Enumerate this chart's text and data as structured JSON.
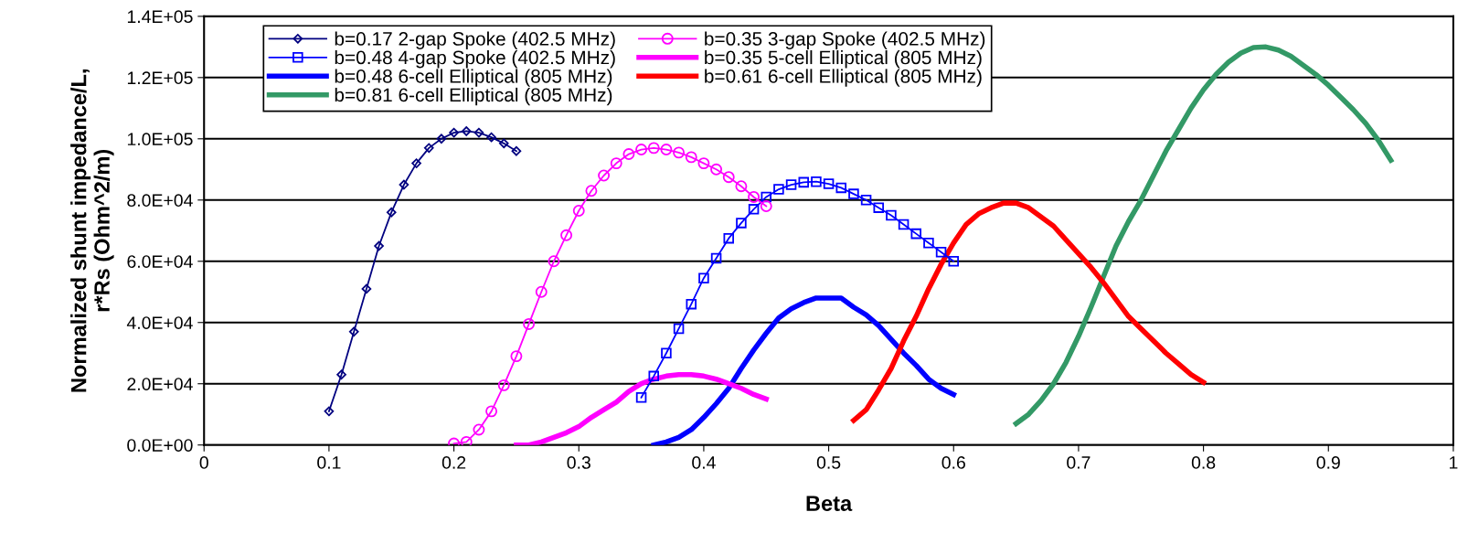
{
  "chart_data": {
    "type": "line",
    "xlabel": "Beta",
    "ylabel": "Normalized shunt impedance/L,\nr*Rs (Ohm^2/m)",
    "xlim": [
      0,
      1
    ],
    "xticks": [
      0,
      0.1,
      0.2,
      0.3,
      0.4,
      0.5,
      0.6,
      0.7,
      0.8,
      0.9,
      1
    ],
    "ylim": [
      0,
      140000
    ],
    "yticks": [
      {
        "value": 0,
        "label": "0.0E+00"
      },
      {
        "value": 20000,
        "label": "2.0E+04"
      },
      {
        "value": 40000,
        "label": "4.0E+04"
      },
      {
        "value": 60000,
        "label": "6.0E+04"
      },
      {
        "value": 80000,
        "label": "8.0E+04"
      },
      {
        "value": 100000,
        "label": "1.0E+05"
      },
      {
        "value": 120000,
        "label": "1.2E+05"
      },
      {
        "value": 140000,
        "label": "1.4E+05"
      }
    ],
    "grid": "y",
    "legend": "top left",
    "series": [
      {
        "name": "b=0.17 2-gap Spoke (402.5 MHz)",
        "color": "#000080",
        "marker": "diamond",
        "x": [
          0.1,
          0.11,
          0.12,
          0.13,
          0.14,
          0.15,
          0.16,
          0.17,
          0.18,
          0.19,
          0.2,
          0.21,
          0.22,
          0.23,
          0.24,
          0.25
        ],
        "values": [
          11000,
          23000,
          37000,
          51000,
          65000,
          76000,
          85000,
          92000,
          97000,
          100000,
          102000,
          102500,
          102000,
          100500,
          98500,
          96000
        ]
      },
      {
        "name": "b=0.48 4-gap Spoke (402.5 MHz)",
        "color": "#0000ff",
        "marker": "square",
        "x": [
          0.35,
          0.36,
          0.37,
          0.38,
          0.39,
          0.4,
          0.41,
          0.42,
          0.43,
          0.44,
          0.45,
          0.46,
          0.47,
          0.48,
          0.49,
          0.5,
          0.51,
          0.52,
          0.53,
          0.54,
          0.55,
          0.56,
          0.57,
          0.58,
          0.59,
          0.6
        ],
        "values": [
          15500,
          22500,
          30000,
          38000,
          46000,
          54500,
          61000,
          67500,
          72500,
          77000,
          81000,
          83500,
          85000,
          85800,
          86000,
          85300,
          84000,
          82000,
          80000,
          77500,
          75000,
          72000,
          69000,
          66000,
          63000,
          60000
        ]
      },
      {
        "name": "b=0.48 6-cell Elliptical (805 MHz)",
        "color": "#0000ff",
        "marker": "none",
        "x": [
          0.36,
          0.37,
          0.38,
          0.39,
          0.4,
          0.41,
          0.42,
          0.43,
          0.44,
          0.45,
          0.46,
          0.47,
          0.48,
          0.49,
          0.5,
          0.51,
          0.52,
          0.53,
          0.54,
          0.55,
          0.56,
          0.57,
          0.58,
          0.59,
          0.6
        ],
        "values": [
          0,
          1000,
          2500,
          5000,
          9000,
          13500,
          18500,
          25000,
          31000,
          36500,
          41500,
          44500,
          46500,
          48000,
          48000,
          48000,
          45000,
          42500,
          39000,
          34500,
          30000,
          26000,
          21500,
          18500,
          16500
        ]
      },
      {
        "name": "b=0.81 6-cell Elliptical (805 MHz)",
        "color": "#339966",
        "marker": "none",
        "x": [
          0.65,
          0.66,
          0.67,
          0.68,
          0.69,
          0.7,
          0.71,
          0.72,
          0.73,
          0.74,
          0.75,
          0.76,
          0.77,
          0.78,
          0.79,
          0.8,
          0.81,
          0.82,
          0.83,
          0.84,
          0.85,
          0.86,
          0.87,
          0.88,
          0.89,
          0.9,
          0.91,
          0.92,
          0.93,
          0.94,
          0.95
        ],
        "values": [
          7000,
          10000,
          14500,
          20000,
          27000,
          35500,
          45000,
          55000,
          65000,
          73000,
          80000,
          88000,
          96000,
          103000,
          110000,
          116000,
          121000,
          125000,
          128000,
          129800,
          130000,
          129000,
          127000,
          124000,
          121000,
          117500,
          113500,
          109500,
          105000,
          99500,
          93000
        ]
      },
      {
        "name": "b=0.35 3-gap Spoke (402.5 MHz)",
        "color": "#ff00ff",
        "marker": "circle",
        "x": [
          0.2,
          0.21,
          0.22,
          0.23,
          0.24,
          0.25,
          0.26,
          0.27,
          0.28,
          0.29,
          0.3,
          0.31,
          0.32,
          0.33,
          0.34,
          0.35,
          0.36,
          0.37,
          0.38,
          0.39,
          0.4,
          0.41,
          0.42,
          0.43,
          0.44,
          0.45
        ],
        "values": [
          500,
          1000,
          5000,
          11000,
          19500,
          29000,
          39500,
          50000,
          60000,
          68500,
          76500,
          83000,
          88000,
          92000,
          95000,
          96500,
          97000,
          96500,
          95500,
          94000,
          92000,
          90000,
          87500,
          84500,
          81000,
          78000
        ]
      },
      {
        "name": "b=0.35 5-cell Elliptical (805 MHz)",
        "color": "#ff00ff",
        "marker": "none",
        "x": [
          0.25,
          0.26,
          0.27,
          0.28,
          0.29,
          0.3,
          0.31,
          0.32,
          0.33,
          0.34,
          0.35,
          0.36,
          0.37,
          0.38,
          0.39,
          0.4,
          0.41,
          0.42,
          0.43,
          0.44,
          0.45
        ],
        "values": [
          0,
          0,
          1000,
          2500,
          4000,
          6000,
          9000,
          11500,
          14000,
          17500,
          20000,
          21500,
          22500,
          23000,
          23000,
          22500,
          21500,
          20000,
          18500,
          16500,
          15000
        ]
      },
      {
        "name": "b=0.61 6-cell Elliptical (805 MHz)",
        "color": "#ff0000",
        "marker": "none",
        "x": [
          0.52,
          0.53,
          0.54,
          0.55,
          0.56,
          0.57,
          0.58,
          0.59,
          0.6,
          0.61,
          0.62,
          0.63,
          0.64,
          0.65,
          0.66,
          0.67,
          0.68,
          0.69,
          0.7,
          0.71,
          0.72,
          0.73,
          0.74,
          0.75,
          0.76,
          0.77,
          0.78,
          0.79,
          0.8
        ],
        "values": [
          8000,
          11500,
          18000,
          25000,
          34000,
          42000,
          51000,
          59000,
          66000,
          72000,
          75500,
          77500,
          79000,
          79000,
          77500,
          74500,
          71500,
          67000,
          62500,
          58000,
          53000,
          47500,
          42000,
          38000,
          34000,
          30000,
          26500,
          23000,
          20500
        ]
      }
    ]
  }
}
